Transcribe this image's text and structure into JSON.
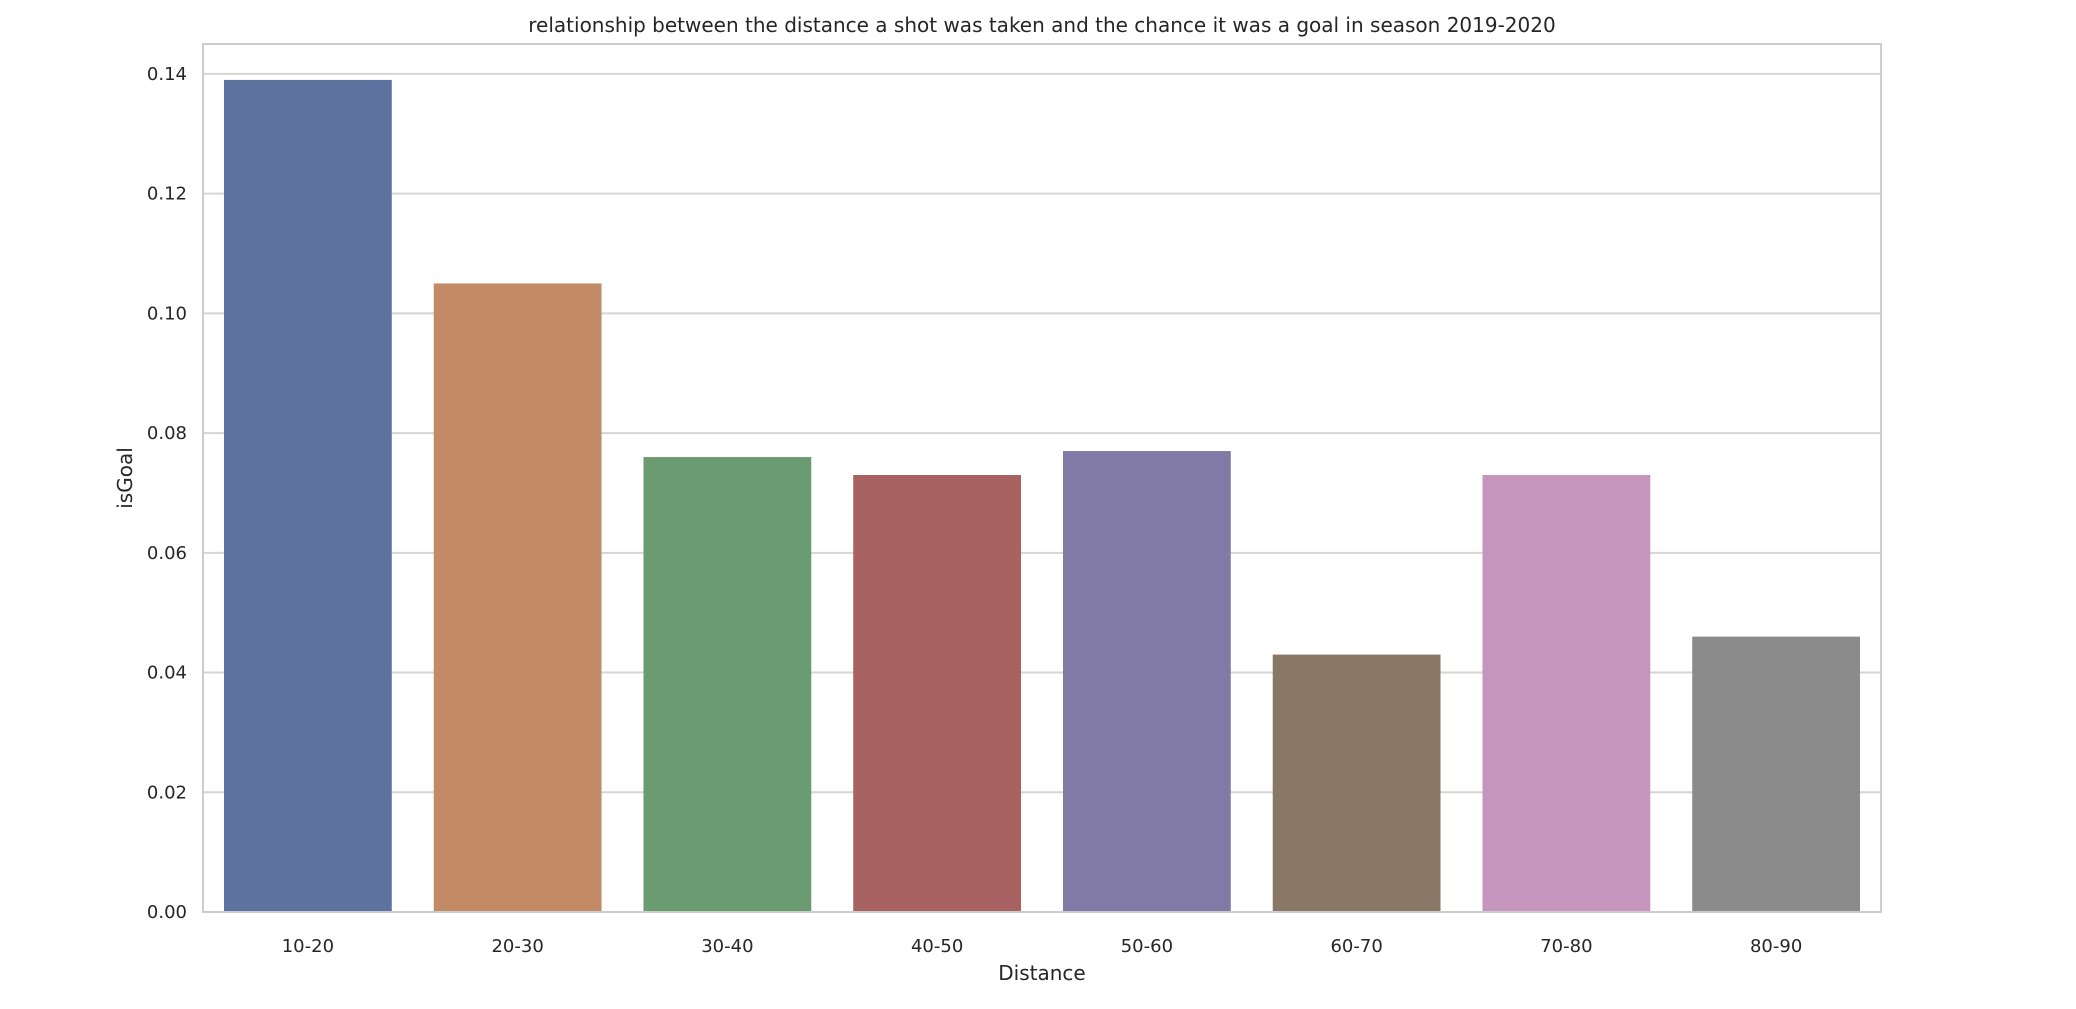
{
  "chart_data": {
    "type": "bar",
    "title": "relationship between the distance a shot was taken and the chance it was a goal in season 2019-2020",
    "xlabel": "Distance",
    "ylabel": "isGoal",
    "categories": [
      "10-20",
      "20-30",
      "30-40",
      "40-50",
      "50-60",
      "60-70",
      "70-80",
      "80-90"
    ],
    "values": [
      0.139,
      0.105,
      0.076,
      0.073,
      0.077,
      0.043,
      0.073,
      0.046
    ],
    "colors": [
      "#5e72a0",
      "#c28a65",
      "#6b9c71",
      "#a86262",
      "#8179a6",
      "#8a7866",
      "#c695bd",
      "#8b8b8b"
    ],
    "ylim": [
      0,
      0.145
    ],
    "yticks": [
      0.0,
      0.02,
      0.04,
      0.06,
      0.08,
      0.1,
      0.12,
      0.14
    ],
    "ytick_labels": [
      "0.00",
      "0.02",
      "0.04",
      "0.06",
      "0.08",
      "0.10",
      "0.12",
      "0.14"
    ],
    "grid": "horizontal",
    "style": {
      "grid_color": "#d5d5d5",
      "frame_color": "#cccccc",
      "text_color": "#262626"
    }
  }
}
